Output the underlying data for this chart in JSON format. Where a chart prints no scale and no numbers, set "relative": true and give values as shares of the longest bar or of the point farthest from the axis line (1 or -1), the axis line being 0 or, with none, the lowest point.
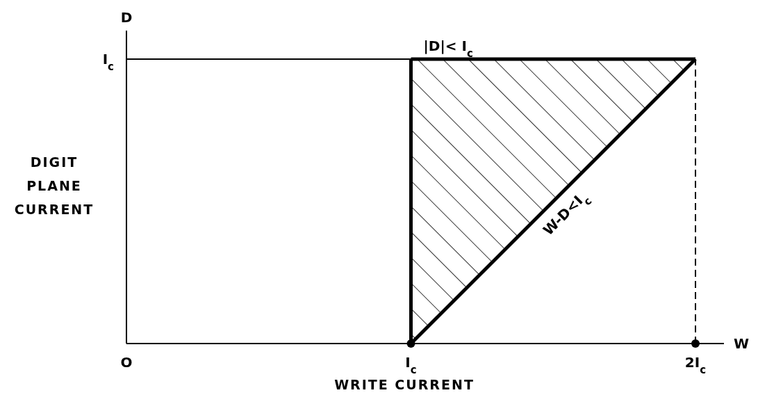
{
  "chart_data": {
    "type": "line",
    "xlabel": "WRITE CURRENT",
    "ylabel": "DIGIT PLANE CURRENT",
    "categories": [
      "O",
      "I$_{c}$",
      "2I$_{c}$"
    ],
    "relative": true,
    "series": [
      {
        "values": [
          1,
          1,
          1
        ],
        "color": "#000000",
        "line_style": "solid",
        "marker": "none"
      },
      {
        "type": "line",
        "values": [
          null,
          0,
          1
        ],
        "color": "#000000",
        "line_style": "solid",
        "marker": "none"
      },
      {
        "type": "line",
        "x": [
          "I$_{c}$",
          "I$_{c}$"
        ],
        "values": [
          0,
          1
        ],
        "color": "#000000",
        "line_style": "solid",
        "marker": "none"
      },
      {
        "type": "line",
        "values": [
          null,
          1,
          1
        ],
        "color": "#000000",
        "line_style": "solid",
        "marker": "none"
      },
      {
        "type": "line",
        "x": [
          "2I$_{c}$",
          "2I$_{c}$"
        ],
        "values": [
          0,
          1
        ],
        "color": "#000000",
        "line_style": "dashed",
        "marker": "none"
      },
      {
        "type": "scatter",
        "values": [
          null,
          0,
          0
        ],
        "color": "#000000",
        "marker": "circle"
      }
    ],
    "annotations": [
      {
        "text": "|D|< I$_{c}$",
        "x": "I$_{c}$",
        "y": 1
      },
      "W-D<I$_{c}$",
      "W",
      "D",
      "I$_{c}$"
    ]
  }
}
